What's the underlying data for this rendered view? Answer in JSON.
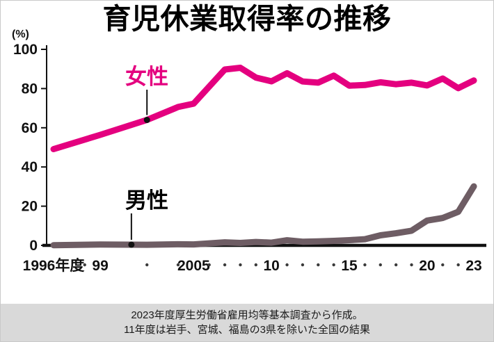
{
  "page": {
    "title": "育児休業取得率の推移",
    "y_unit": "(%)",
    "footer_lines": [
      "2023年度厚生労働省雇用均等基本調査から作成。",
      "11年度は岩手、宮城、福島の3県を除いた全国の結果"
    ]
  },
  "colors": {
    "female": "#e4007f",
    "male": "#6e5d64",
    "axis": "#111111",
    "tick_dot": "#3a3a3a",
    "callout": "#111111",
    "footer_bg": "#d9d9d9"
  },
  "chart_data": {
    "type": "line",
    "title": "育児休業取得率の推移",
    "xlabel": "年度",
    "ylabel": "(%)",
    "ylim": [
      0,
      100
    ],
    "yticks": [
      0,
      20,
      40,
      60,
      80,
      100
    ],
    "xlim": [
      1996,
      2023
    ],
    "grid": false,
    "legend_position": "inline-labels",
    "x_labeled_ticks": [
      {
        "year": 1996,
        "label": "1996年度"
      },
      {
        "year": 1999,
        "label": "99"
      },
      {
        "year": 2005,
        "label": "2005"
      },
      {
        "year": 2010,
        "label": "10"
      },
      {
        "year": 2015,
        "label": "15"
      },
      {
        "year": 2020,
        "label": "20"
      },
      {
        "year": 2023,
        "label": "23"
      }
    ],
    "x_dot_ticks": [
      1998,
      2002,
      2004,
      2006,
      2007,
      2008,
      2009,
      2011,
      2012,
      2013,
      2014,
      2016,
      2017,
      2018,
      2019,
      2021,
      2022
    ],
    "series": [
      {
        "name": "女性",
        "color_key": "female",
        "points": [
          [
            1996,
            49.1
          ],
          [
            1999,
            56.4
          ],
          [
            2002,
            64.0
          ],
          [
            2004,
            70.6
          ],
          [
            2005,
            72.3
          ],
          [
            2007,
            89.7
          ],
          [
            2008,
            90.6
          ],
          [
            2009,
            85.6
          ],
          [
            2010,
            83.7
          ],
          [
            2011,
            87.8
          ],
          [
            2012,
            83.6
          ],
          [
            2013,
            83.0
          ],
          [
            2014,
            86.6
          ],
          [
            2015,
            81.5
          ],
          [
            2016,
            81.8
          ],
          [
            2017,
            83.2
          ],
          [
            2018,
            82.2
          ],
          [
            2019,
            83.0
          ],
          [
            2020,
            81.6
          ],
          [
            2021,
            85.1
          ],
          [
            2022,
            80.2
          ],
          [
            2023,
            84.1
          ]
        ]
      },
      {
        "name": "男性",
        "color_key": "male",
        "points": [
          [
            1996,
            0.12
          ],
          [
            1999,
            0.42
          ],
          [
            2002,
            0.33
          ],
          [
            2004,
            0.56
          ],
          [
            2005,
            0.5
          ],
          [
            2007,
            1.56
          ],
          [
            2008,
            1.23
          ],
          [
            2009,
            1.72
          ],
          [
            2010,
            1.38
          ],
          [
            2011,
            2.63
          ],
          [
            2012,
            1.89
          ],
          [
            2013,
            2.03
          ],
          [
            2014,
            2.3
          ],
          [
            2015,
            2.65
          ],
          [
            2016,
            3.16
          ],
          [
            2017,
            5.14
          ],
          [
            2018,
            6.16
          ],
          [
            2019,
            7.48
          ],
          [
            2020,
            12.65
          ],
          [
            2021,
            13.97
          ],
          [
            2022,
            17.13
          ],
          [
            2023,
            30.1
          ]
        ]
      }
    ],
    "annotations": [
      {
        "series": "女性",
        "anchor_year": 2002
      },
      {
        "series": "男性",
        "anchor_year": 2001
      }
    ]
  }
}
